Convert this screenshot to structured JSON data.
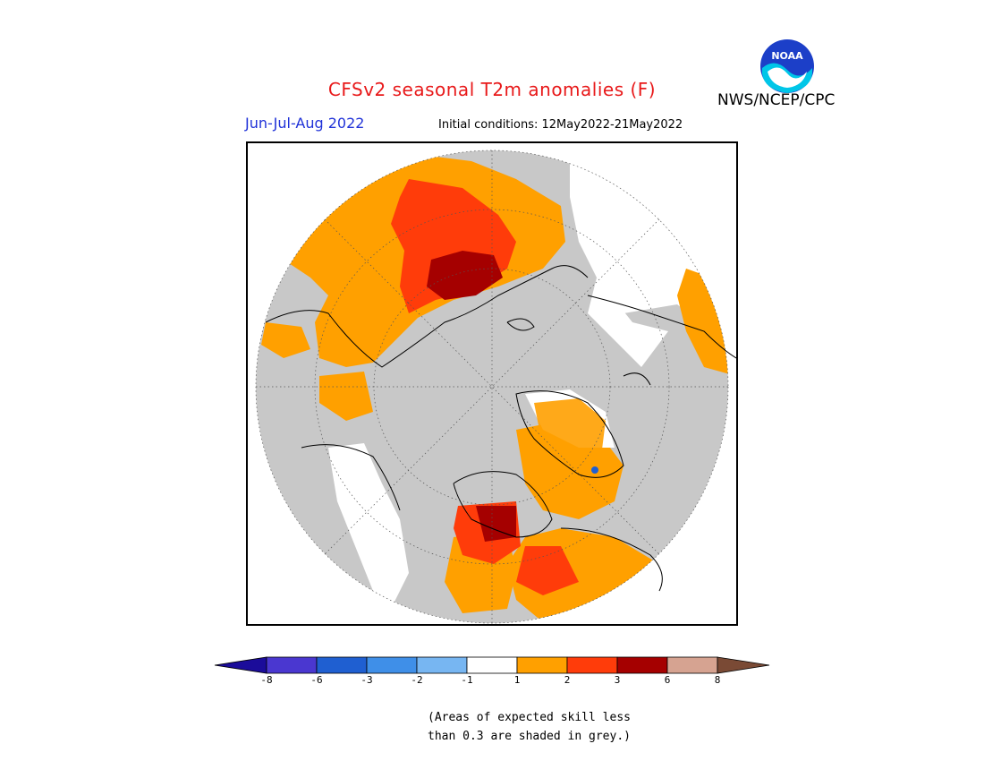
{
  "header": {
    "title": "CFSv2 seasonal T2m anomalies (F)",
    "org": "NWS/NCEP/CPC",
    "logo_text": "NOAA",
    "period": "Jun-Jul-Aug 2022",
    "initial_conditions": "Initial conditions: 12May2022-21May2022"
  },
  "legend": {
    "bins": [
      {
        "color": "#1b0c9a"
      },
      {
        "color": "#4a37d0"
      },
      {
        "color": "#1f5fd1"
      },
      {
        "color": "#3f8fe8"
      },
      {
        "color": "#77b6f2"
      },
      {
        "color": "#ffffff"
      },
      {
        "color": "#ffa000"
      },
      {
        "color": "#ff3c0a"
      },
      {
        "color": "#a50000"
      },
      {
        "color": "#d6a391"
      },
      {
        "color": "#7a4a35"
      }
    ],
    "ticks": [
      "-8",
      "-6",
      "-3",
      "-2",
      "-1",
      "1",
      "2",
      "3",
      "6",
      "8"
    ],
    "note_lines": [
      "(Areas of expected skill less",
      "than 0.3 are shaded in grey.)"
    ]
  },
  "map": {
    "projection": "north polar stereographic",
    "ocean_color": "#c8c8c8",
    "land_outline_color": "#000000",
    "low_skill_color": "#c8c8c8"
  }
}
